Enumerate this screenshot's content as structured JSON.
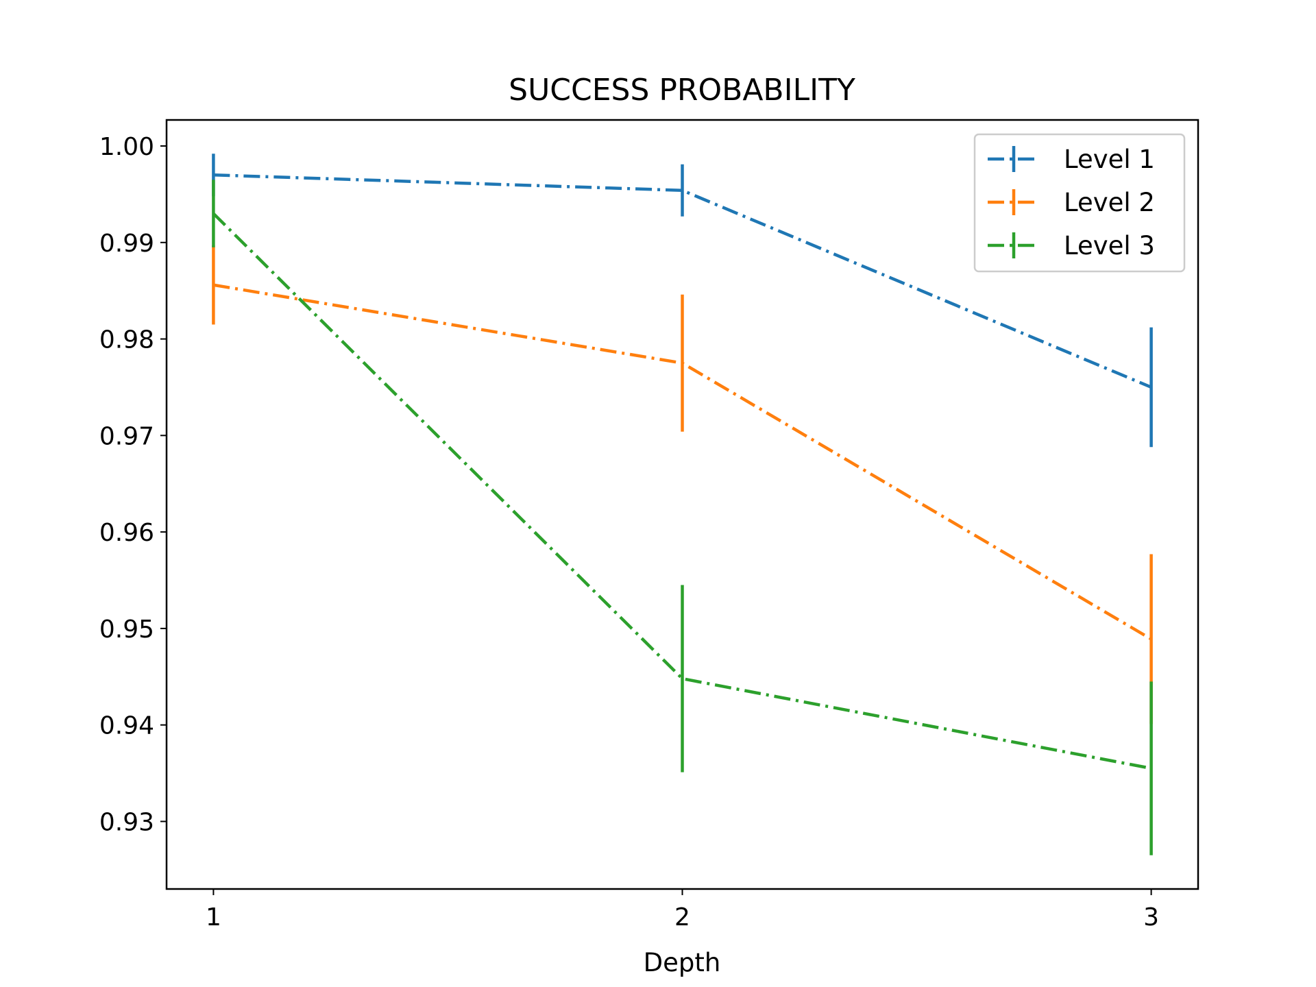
{
  "chart_data": {
    "type": "line",
    "title": "SUCCESS PROBABILITY",
    "xlabel": "Depth",
    "ylabel": "",
    "x": [
      1,
      2,
      3
    ],
    "x_ticks": [
      "1",
      "2",
      "3"
    ],
    "xlim": [
      0.9,
      3.1
    ],
    "ylim": [
      0.923,
      1.0027
    ],
    "y_ticks": [
      0.93,
      0.94,
      0.95,
      0.96,
      0.97,
      0.98,
      0.99,
      1.0
    ],
    "y_tick_labels": [
      "0.93",
      "0.94",
      "0.95",
      "0.96",
      "0.97",
      "0.98",
      "0.99",
      "1.00"
    ],
    "grid": false,
    "legend_position": "top-right",
    "line_style": "dash-dot",
    "series": [
      {
        "name": "Level 1",
        "color": "#1f77b4",
        "values": [
          0.997,
          0.9954,
          0.975
        ],
        "errors": [
          0.0022,
          0.0027,
          0.0062
        ]
      },
      {
        "name": "Level 2",
        "color": "#ff7f0e",
        "values": [
          0.9856,
          0.9775,
          0.9489
        ],
        "errors": [
          0.0041,
          0.0071,
          0.0088
        ]
      },
      {
        "name": "Level 3",
        "color": "#2ca02c",
        "values": [
          0.993,
          0.9448,
          0.9355
        ],
        "errors": [
          0.0035,
          0.0097,
          0.009
        ]
      }
    ]
  }
}
